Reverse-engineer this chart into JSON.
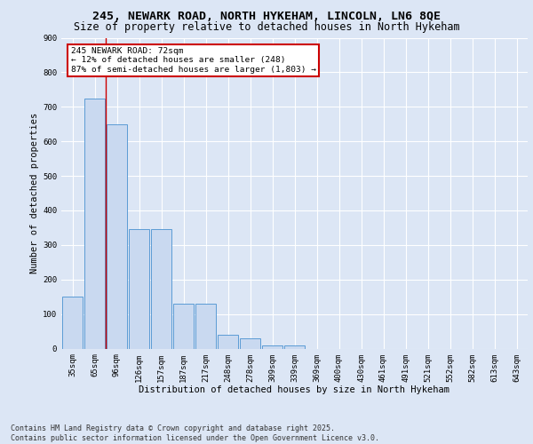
{
  "title_line1": "245, NEWARK ROAD, NORTH HYKEHAM, LINCOLN, LN6 8QE",
  "title_line2": "Size of property relative to detached houses in North Hykeham",
  "xlabel": "Distribution of detached houses by size in North Hykeham",
  "ylabel": "Number of detached properties",
  "categories": [
    "35sqm",
    "65sqm",
    "96sqm",
    "126sqm",
    "157sqm",
    "187sqm",
    "217sqm",
    "248sqm",
    "278sqm",
    "309sqm",
    "339sqm",
    "369sqm",
    "400sqm",
    "430sqm",
    "461sqm",
    "491sqm",
    "521sqm",
    "552sqm",
    "582sqm",
    "613sqm",
    "643sqm"
  ],
  "values": [
    150,
    725,
    650,
    345,
    345,
    130,
    130,
    40,
    30,
    10,
    8,
    0,
    0,
    0,
    0,
    0,
    0,
    0,
    0,
    0,
    0
  ],
  "bar_color": "#c9d9f0",
  "bar_edge_color": "#5b9bd5",
  "red_line_x": 1.5,
  "annotation_text": "245 NEWARK ROAD: 72sqm\n← 12% of detached houses are smaller (248)\n87% of semi-detached houses are larger (1,803) →",
  "annotation_box_color": "#ffffff",
  "annotation_box_edge_color": "#cc0000",
  "ylim": [
    0,
    900
  ],
  "yticks": [
    0,
    100,
    200,
    300,
    400,
    500,
    600,
    700,
    800,
    900
  ],
  "background_color": "#dce6f5",
  "plot_bg_color": "#dce6f5",
  "grid_color": "#ffffff",
  "footer_line1": "Contains HM Land Registry data © Crown copyright and database right 2025.",
  "footer_line2": "Contains public sector information licensed under the Open Government Licence v3.0.",
  "title_fontsize": 9.5,
  "subtitle_fontsize": 8.5,
  "tick_fontsize": 6.5,
  "ylabel_fontsize": 7.5,
  "xlabel_fontsize": 7.5,
  "annotation_fontsize": 6.8,
  "footer_fontsize": 6.0
}
